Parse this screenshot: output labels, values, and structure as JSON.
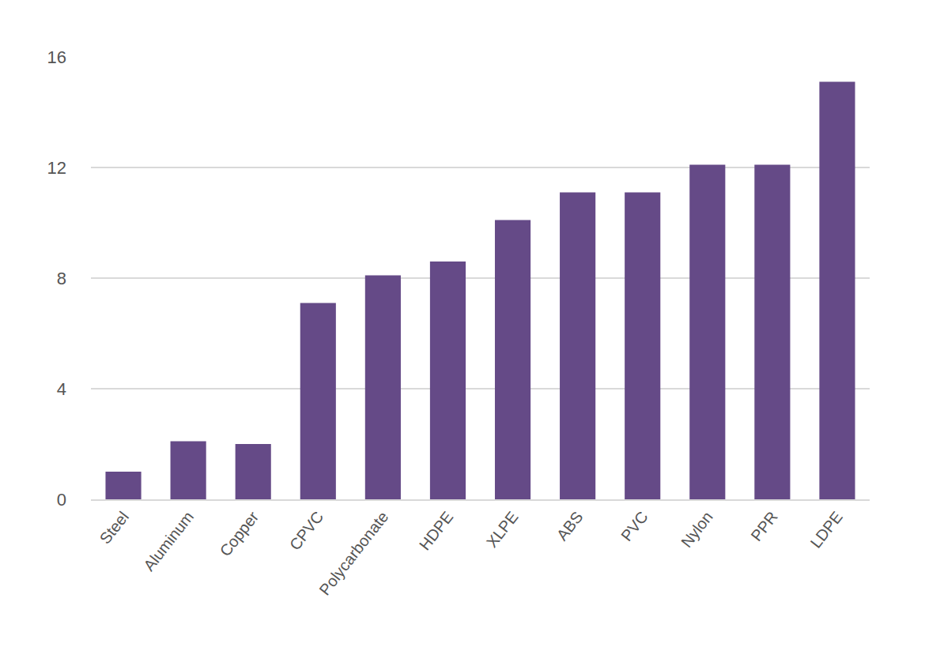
{
  "chart_data": {
    "type": "bar",
    "categories": [
      "Steel",
      "Aluminum",
      "Copper",
      "CPVC",
      "Polycarbonate",
      "HDPE",
      "XLPE",
      "ABS",
      "PVC",
      "Nylon",
      "PPR",
      "LDPE"
    ],
    "values": [
      1.0,
      2.1,
      2.0,
      7.1,
      8.1,
      8.6,
      10.1,
      11.1,
      11.1,
      12.1,
      12.1,
      15.1
    ],
    "color": "#654a87",
    "ylim": [
      0,
      16
    ],
    "yticks": [
      0,
      4,
      8,
      12,
      16
    ],
    "grid": true
  }
}
